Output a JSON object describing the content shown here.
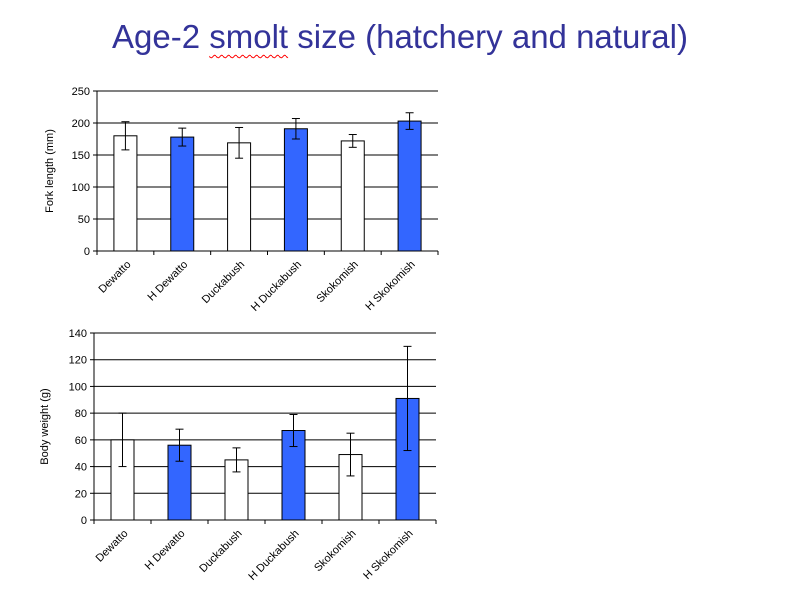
{
  "slide": {
    "title_parts": [
      "Age-2 ",
      "smolt",
      " size (hatchery  and natural)"
    ]
  },
  "colors": {
    "natural": "#ffffff",
    "hatchery": "#3366ff",
    "title": "#333399"
  },
  "chart_data": [
    {
      "type": "bar",
      "categories": [
        "Dewatto",
        "H Dewatto",
        "Duckabush",
        "H Duckabush",
        "Skokomish",
        "H Skokomish"
      ],
      "values": [
        180,
        178,
        169,
        191,
        172,
        203
      ],
      "errors": [
        22,
        14,
        24,
        16,
        10,
        13
      ],
      "bar_colors": [
        "natural",
        "hatchery",
        "natural",
        "hatchery",
        "natural",
        "hatchery"
      ],
      "title": "",
      "xlabel": "",
      "ylabel": "Fork length (mm)",
      "ylim": [
        0,
        250
      ],
      "yticks": [
        0,
        50,
        100,
        150,
        200,
        250
      ],
      "grid": true
    },
    {
      "type": "bar",
      "categories": [
        "Dewatto",
        "H Dewatto",
        "Duckabush",
        "H Duckabush",
        "Skokomish",
        "H Skokomish"
      ],
      "values": [
        60,
        56,
        45,
        67,
        49,
        91
      ],
      "errors": [
        20,
        12,
        9,
        12,
        16,
        39
      ],
      "bar_colors": [
        "natural",
        "hatchery",
        "natural",
        "hatchery",
        "natural",
        "hatchery"
      ],
      "title": "",
      "xlabel": "",
      "ylabel": "Body weight (g)",
      "ylim": [
        0,
        140
      ],
      "yticks": [
        0,
        20,
        40,
        60,
        80,
        100,
        120,
        140
      ],
      "grid": true
    }
  ]
}
